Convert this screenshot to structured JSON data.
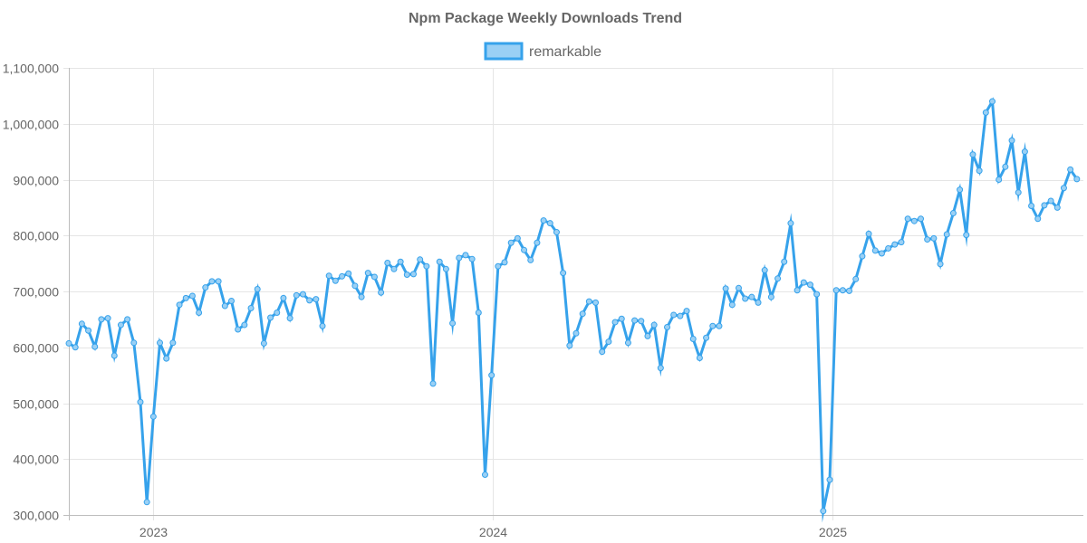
{
  "chart_data": {
    "type": "line",
    "title": "Npm Package Weekly Downloads Trend",
    "xlabel": "",
    "ylabel": "",
    "ylim": [
      300000,
      1100000
    ],
    "yticks": [
      300000,
      400000,
      500000,
      600000,
      700000,
      800000,
      900000,
      1000000,
      1100000
    ],
    "ytick_labels": [
      "300,000",
      "400,000",
      "500,000",
      "600,000",
      "700,000",
      "800,000",
      "900,000",
      "1,000,000",
      "1,100,000"
    ],
    "x_range": [
      "2022-10-02",
      "2025-09-28"
    ],
    "xticks": [
      "2023-01-01",
      "2024-01-01",
      "2025-01-01"
    ],
    "xtick_labels": [
      "2023",
      "2024",
      "2025"
    ],
    "grid": true,
    "legend_position": "top",
    "colors": {
      "line": "#36a2eb",
      "point_fill": "#9ad0f5"
    },
    "series": [
      {
        "name": "remarkable",
        "start_date": "2022-10-02",
        "interval_days": 7,
        "values": [
          607000,
          600000,
          642000,
          630000,
          601000,
          650000,
          652000,
          585000,
          640000,
          650000,
          608000,
          502000,
          323000,
          476000,
          608000,
          580000,
          608000,
          676000,
          688000,
          692000,
          662000,
          707000,
          718000,
          718000,
          674000,
          683000,
          632000,
          640000,
          670000,
          704000,
          607000,
          653000,
          662000,
          688000,
          652000,
          693000,
          695000,
          684000,
          686000,
          638000,
          728000,
          719000,
          727000,
          732000,
          710000,
          690000,
          733000,
          726000,
          698000,
          751000,
          740000,
          753000,
          730000,
          731000,
          757000,
          745000,
          535000,
          753000,
          740000,
          643000,
          760000,
          765000,
          758000,
          662000,
          372000,
          550000,
          745000,
          752000,
          787000,
          795000,
          774000,
          756000,
          787000,
          827000,
          822000,
          806000,
          733000,
          603000,
          625000,
          660000,
          682000,
          680000,
          592000,
          610000,
          645000,
          651000,
          608000,
          648000,
          647000,
          620000,
          640000,
          563000,
          636000,
          658000,
          656000,
          665000,
          615000,
          581000,
          617000,
          638000,
          638000,
          705000,
          676000,
          706000,
          687000,
          690000,
          680000,
          738000,
          690000,
          723000,
          753000,
          822000,
          702000,
          716000,
          712000,
          695000,
          307000,
          363000,
          702000,
          702000,
          701000,
          722000,
          763000,
          803000,
          773000,
          768000,
          777000,
          784000,
          788000,
          830000,
          826000,
          830000,
          793000,
          795000,
          749000,
          802000,
          840000,
          882000,
          801000,
          945000,
          916000,
          1020000,
          1040000,
          900000,
          923000,
          970000,
          877000,
          950000,
          853000,
          830000,
          854000,
          862000,
          850000,
          885000,
          918000,
          901000
        ]
      }
    ]
  }
}
